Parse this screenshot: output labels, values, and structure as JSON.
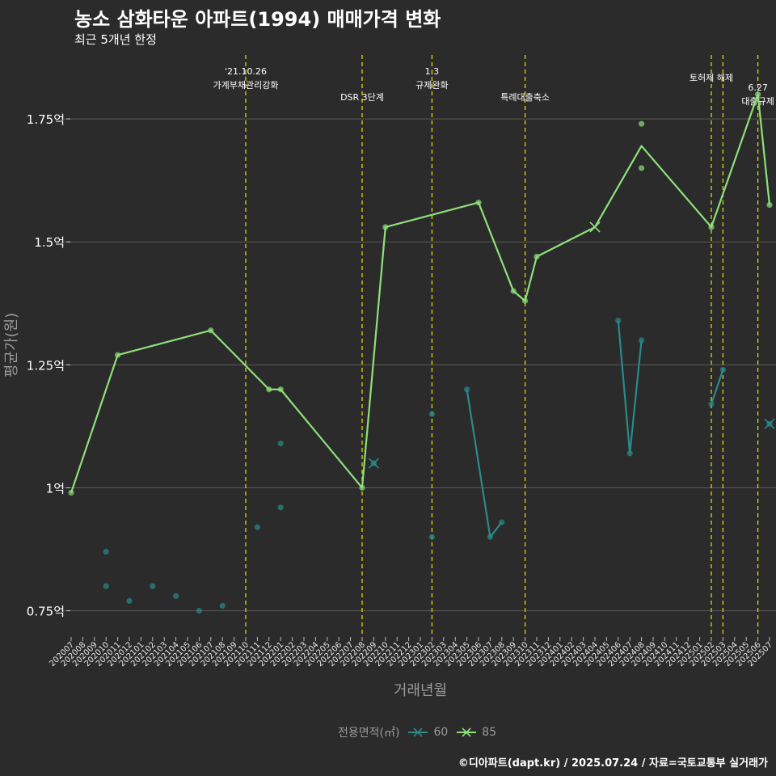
{
  "title": "농소 삼화타운 아파트(1994) 매매가격 변화",
  "subtitle": "최근 5개년 한정",
  "caption": "©디아파트(dapt.kr) / 2025.07.24 / 자료=국토교통부 실거래가",
  "colors": {
    "background": "#2b2b2b",
    "grid": "#5a5a5a",
    "event_line": "#e8e800",
    "series_60": "#2a8a8c",
    "series_85": "#8ee07a"
  },
  "chart_data": {
    "type": "line",
    "xlabel": "거래년월",
    "ylabel": "평균가(원)",
    "ylim": [
      0.7,
      1.88
    ],
    "legend_title": "전용면적(㎡)",
    "legend_position": "bottom",
    "categories": [
      "202007",
      "202008",
      "202009",
      "202010",
      "202011",
      "202012",
      "202101",
      "202102",
      "202103",
      "202104",
      "202105",
      "202106",
      "202107",
      "202108",
      "202109",
      "202110",
      "202111",
      "202112",
      "202201",
      "202202",
      "202203",
      "202204",
      "202205",
      "202206",
      "202207",
      "202208",
      "202209",
      "202210",
      "202211",
      "202212",
      "202301",
      "202302",
      "202303",
      "202304",
      "202305",
      "202306",
      "202307",
      "202308",
      "202309",
      "202310",
      "202311",
      "202312",
      "202401",
      "202402",
      "202403",
      "202404",
      "202405",
      "202406",
      "202407",
      "202408",
      "202409",
      "202410",
      "202411",
      "202412",
      "202501",
      "202502",
      "202503",
      "202504",
      "202505",
      "202506",
      "202507"
    ],
    "y_ticks": [
      {
        "value": 0.75,
        "label": "0.75억"
      },
      {
        "value": 1.0,
        "label": "1억"
      },
      {
        "value": 1.25,
        "label": "1.25억"
      },
      {
        "value": 1.5,
        "label": "1.5억"
      },
      {
        "value": 1.75,
        "label": "1.75억"
      }
    ],
    "grid": true,
    "series": [
      {
        "name": "60",
        "line_segments": [
          [
            [
              "202305",
              1.2
            ],
            [
              "202307",
              0.9
            ],
            [
              "202308",
              0.93
            ]
          ],
          [
            [
              "202406",
              1.34
            ],
            [
              "202407",
              1.07
            ],
            [
              "202408",
              1.3
            ]
          ],
          [
            [
              "202502",
              1.17
            ],
            [
              "202503",
              1.24
            ]
          ]
        ],
        "points": [
          [
            "202010",
            0.87
          ],
          [
            "202010",
            0.8
          ],
          [
            "202012",
            0.77
          ],
          [
            "202102",
            0.8
          ],
          [
            "202104",
            0.78
          ],
          [
            "202106",
            0.75
          ],
          [
            "202108",
            0.76
          ],
          [
            "202111",
            0.92
          ],
          [
            "202201",
            1.09
          ],
          [
            "202201",
            0.96
          ],
          [
            "202209",
            1.05
          ],
          [
            "202302",
            1.15
          ],
          [
            "202302",
            0.9
          ],
          [
            "202305",
            1.2
          ],
          [
            "202307",
            0.9
          ],
          [
            "202308",
            0.93
          ],
          [
            "202406",
            1.34
          ],
          [
            "202407",
            1.07
          ],
          [
            "202408",
            1.3
          ],
          [
            "202502",
            1.17
          ],
          [
            "202503",
            1.24
          ],
          [
            "202507",
            1.13
          ]
        ],
        "crosses": [
          [
            "202209",
            1.05
          ],
          [
            "202507",
            1.13
          ]
        ]
      },
      {
        "name": "85",
        "line": [
          [
            "202007",
            0.99
          ],
          [
            "202011",
            1.27
          ],
          [
            "202107",
            1.32
          ],
          [
            "202112",
            1.2
          ],
          [
            "202201",
            1.2
          ],
          [
            "202208",
            1.0
          ],
          [
            "202210",
            1.53
          ],
          [
            "202306",
            1.58
          ],
          [
            "202309",
            1.4
          ],
          [
            "202310",
            1.38
          ],
          [
            "202311",
            1.47
          ],
          [
            "202404",
            1.53
          ],
          [
            "202408",
            1.695
          ],
          [
            "202502",
            1.53
          ],
          [
            "202506",
            1.8
          ],
          [
            "202507",
            1.575
          ]
        ],
        "points": [
          [
            "202007",
            0.99
          ],
          [
            "202011",
            1.27
          ],
          [
            "202107",
            1.32
          ],
          [
            "202112",
            1.2
          ],
          [
            "202201",
            1.2
          ],
          [
            "202208",
            1.0
          ],
          [
            "202210",
            1.53
          ],
          [
            "202306",
            1.58
          ],
          [
            "202309",
            1.4
          ],
          [
            "202310",
            1.38
          ],
          [
            "202311",
            1.47
          ],
          [
            "202408",
            1.74
          ],
          [
            "202408",
            1.65
          ],
          [
            "202502",
            1.53
          ],
          [
            "202506",
            1.8
          ],
          [
            "202507",
            1.575
          ]
        ],
        "crosses": [
          [
            "202404",
            1.53
          ]
        ]
      }
    ],
    "events": [
      {
        "at": "202110",
        "lines": [
          "'21.10.26",
          "가계부채관리강화"
        ],
        "row": 0
      },
      {
        "at": "202208",
        "lines": [
          "DSR 3단계"
        ],
        "row": 2
      },
      {
        "at": "202302",
        "lines": [
          "1.3",
          "규제완화"
        ],
        "row": 0
      },
      {
        "at": "202310",
        "lines": [
          "특례대출축소"
        ],
        "row": 2
      },
      {
        "at": "202502",
        "lines": [
          "토허제 해제"
        ],
        "row": 1
      },
      {
        "at": "202503",
        "lines": [],
        "row": 0
      },
      {
        "at": "202506",
        "lines": [
          "6.27",
          "대출규제"
        ],
        "row": 1.5
      }
    ]
  }
}
